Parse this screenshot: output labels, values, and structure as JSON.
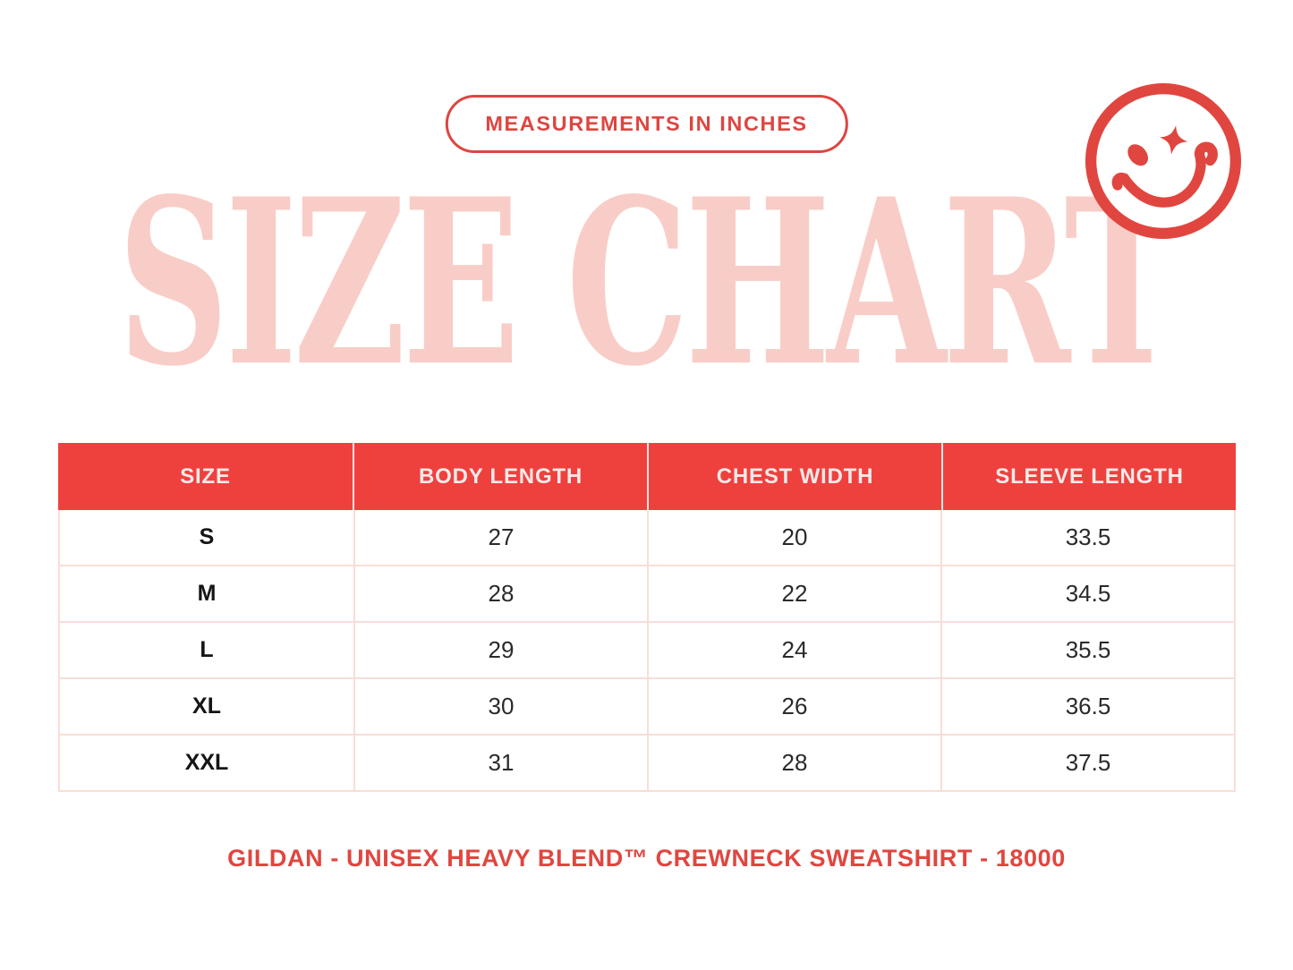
{
  "badge": {
    "label": "MEASUREMENTS IN INCHES"
  },
  "title": {
    "text": "SIZE CHART"
  },
  "icons": {
    "smiley": "winking-smiley-face-with-star-eye"
  },
  "colors": {
    "brand_red": "#dd4641",
    "table_header_red": "#ee413e",
    "title_pink": "#f9cdc7",
    "table_border_pink": "#f9ddd8",
    "header_text": "#f8eae9",
    "cell_text": "#2a2a2a",
    "background": "#ffffff"
  },
  "table": {
    "headers": [
      "SIZE",
      "BODY LENGTH",
      "CHEST WIDTH",
      "SLEEVE LENGTH"
    ],
    "rows": [
      [
        "S",
        "27",
        "20",
        "33.5"
      ],
      [
        "M",
        "28",
        "22",
        "34.5"
      ],
      [
        "L",
        "29",
        "24",
        "35.5"
      ],
      [
        "XL",
        "30",
        "26",
        "36.5"
      ],
      [
        "XXL",
        "31",
        "28",
        "37.5"
      ]
    ]
  },
  "caption": {
    "text": "GILDAN - UNISEX HEAVY BLEND™ CREWNECK SWEATSHIRT - 18000"
  },
  "chart_data": {
    "type": "table",
    "title": "SIZE CHART",
    "subtitle": "MEASUREMENTS IN INCHES",
    "columns": [
      "SIZE",
      "BODY LENGTH",
      "CHEST WIDTH",
      "SLEEVE LENGTH"
    ],
    "rows": [
      [
        "S",
        27,
        20,
        33.5
      ],
      [
        "M",
        28,
        22,
        34.5
      ],
      [
        "L",
        29,
        24,
        35.5
      ],
      [
        "XL",
        30,
        26,
        36.5
      ],
      [
        "XXL",
        31,
        28,
        37.5
      ]
    ],
    "units": "inches",
    "footnote": "GILDAN - UNISEX HEAVY BLEND™ CREWNECK SWEATSHIRT - 18000"
  }
}
